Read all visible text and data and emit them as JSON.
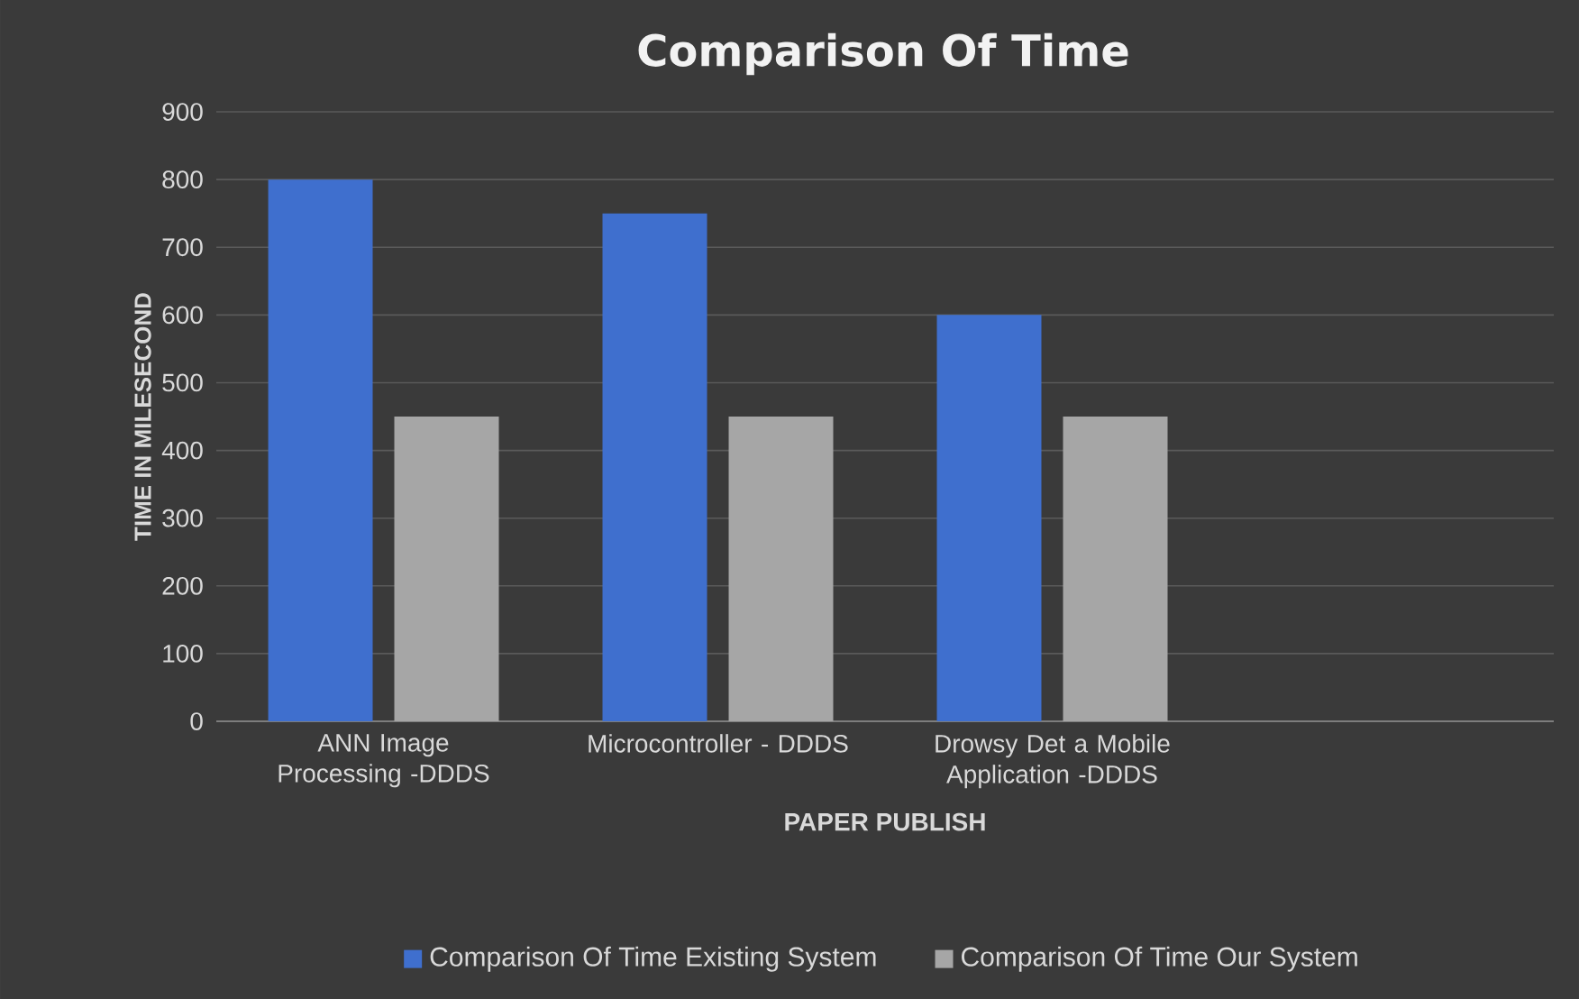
{
  "chart_data": {
    "type": "bar",
    "title": "Comparison Of Time",
    "xlabel": "PAPER PUBLISH",
    "ylabel": "TIME IN MILESECOND",
    "categories": [
      "ANN Image Processing -DDDS",
      "Microcontroller - DDDS",
      "Drowsy Det a Mobile Application -DDDS",
      null
    ],
    "series": [
      {
        "name": "Comparison Of Time Existing System",
        "color": "#3f6fce",
        "values": [
          800,
          750,
          600,
          null
        ]
      },
      {
        "name": "Comparison Of Time Our System",
        "color": "#a6a6a6",
        "values": [
          450,
          450,
          450,
          null
        ]
      }
    ],
    "ylim": [
      0,
      900
    ],
    "yticks": [
      0,
      100,
      200,
      300,
      400,
      500,
      600,
      700,
      800,
      900
    ],
    "grid": "y",
    "legend": "bottom"
  }
}
